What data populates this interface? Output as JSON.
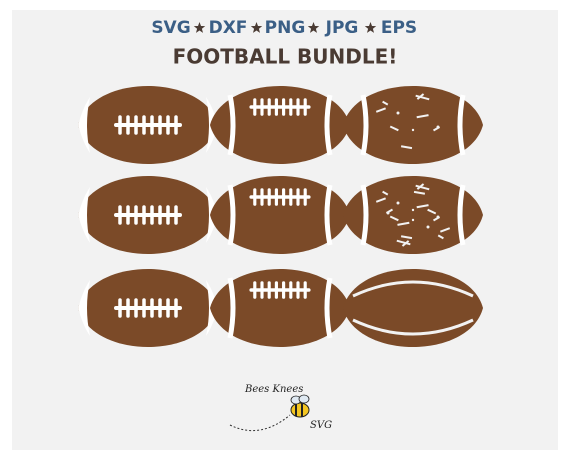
{
  "header": {
    "formats": [
      "SVG",
      "DXF",
      "PNG",
      "JPG",
      "EPS"
    ],
    "title": "FOOTBALL BUNDLE!"
  },
  "logo": {
    "name": "Bees Knees",
    "tag": "SVG"
  }
}
